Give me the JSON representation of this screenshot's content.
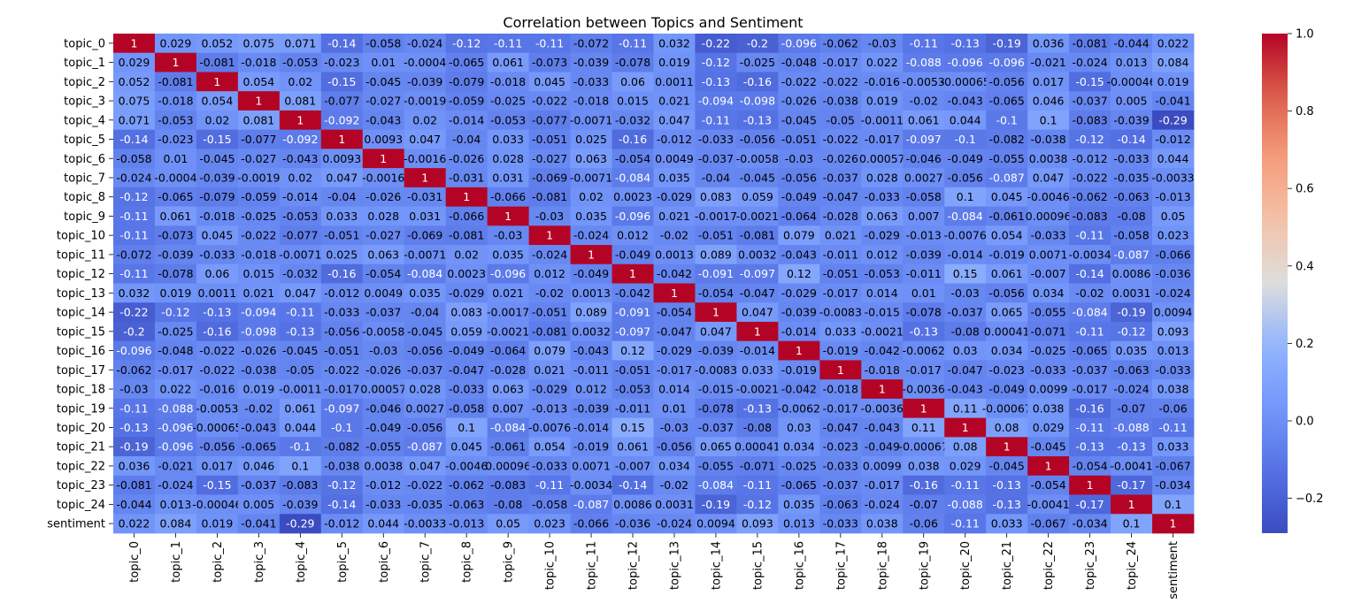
{
  "chart_data": {
    "type": "heatmap",
    "title": "Correlation between Topics and Sentiment",
    "labels": [
      "topic_0",
      "topic_1",
      "topic_2",
      "topic_3",
      "topic_4",
      "topic_5",
      "topic_6",
      "topic_7",
      "topic_8",
      "topic_9",
      "topic_10",
      "topic_11",
      "topic_12",
      "topic_13",
      "topic_14",
      "topic_15",
      "topic_16",
      "topic_17",
      "topic_18",
      "topic_19",
      "topic_20",
      "topic_21",
      "topic_22",
      "topic_23",
      "topic_24",
      "sentiment"
    ],
    "matrix": [
      [
        1,
        0.029,
        0.052,
        0.075,
        0.071,
        -0.14,
        -0.058,
        -0.024,
        -0.12,
        -0.11,
        -0.11,
        -0.072,
        -0.11,
        0.032,
        -0.22,
        -0.2,
        -0.096,
        -0.062,
        -0.03,
        -0.11,
        -0.13,
        -0.19,
        0.036,
        -0.081,
        -0.044,
        0.022
      ],
      [
        0.029,
        1,
        -0.081,
        -0.018,
        -0.053,
        -0.023,
        0.01,
        -0.0004,
        -0.065,
        0.061,
        -0.073,
        -0.039,
        -0.078,
        0.019,
        -0.12,
        -0.025,
        -0.048,
        -0.017,
        0.022,
        -0.088,
        -0.096,
        -0.096,
        -0.021,
        -0.024,
        0.013,
        0.084
      ],
      [
        0.052,
        -0.081,
        1,
        0.054,
        0.02,
        -0.15,
        -0.045,
        -0.039,
        -0.079,
        -0.018,
        0.045,
        -0.033,
        0.06,
        0.0011,
        -0.13,
        -0.16,
        -0.022,
        -0.022,
        -0.016,
        -0.0053,
        -0.00065,
        -0.056,
        0.017,
        -0.15,
        -0.00046,
        0.019
      ],
      [
        0.075,
        -0.018,
        0.054,
        1,
        0.081,
        -0.077,
        -0.027,
        -0.0019,
        -0.059,
        -0.025,
        -0.022,
        -0.018,
        0.015,
        0.021,
        -0.094,
        -0.098,
        -0.026,
        -0.038,
        0.019,
        -0.02,
        -0.043,
        -0.065,
        0.046,
        -0.037,
        0.005,
        -0.041
      ],
      [
        0.071,
        -0.053,
        0.02,
        0.081,
        1,
        -0.092,
        -0.043,
        0.02,
        -0.014,
        -0.053,
        -0.077,
        -0.0071,
        -0.032,
        0.047,
        -0.11,
        -0.13,
        -0.045,
        -0.05,
        -0.0011,
        0.061,
        0.044,
        -0.1,
        0.1,
        -0.083,
        -0.039,
        -0.29
      ],
      [
        -0.14,
        -0.023,
        -0.15,
        -0.077,
        -0.092,
        1,
        0.0093,
        0.047,
        -0.04,
        0.033,
        -0.051,
        0.025,
        -0.16,
        -0.012,
        -0.033,
        -0.056,
        -0.051,
        -0.022,
        -0.017,
        -0.097,
        -0.1,
        -0.082,
        -0.038,
        -0.12,
        -0.14,
        -0.012
      ],
      [
        -0.058,
        0.01,
        -0.045,
        -0.027,
        -0.043,
        0.0093,
        1,
        -0.0016,
        -0.026,
        0.028,
        -0.027,
        0.063,
        -0.054,
        0.0049,
        -0.037,
        -0.0058,
        -0.03,
        -0.026,
        0.00057,
        -0.046,
        -0.049,
        -0.055,
        0.0038,
        -0.012,
        -0.033,
        0.044
      ],
      [
        -0.024,
        -0.0004,
        -0.039,
        -0.0019,
        0.02,
        0.047,
        -0.0016,
        1,
        -0.031,
        0.031,
        -0.069,
        -0.0071,
        -0.084,
        0.035,
        -0.04,
        -0.045,
        -0.056,
        -0.037,
        0.028,
        0.0027,
        -0.056,
        -0.087,
        0.047,
        -0.022,
        -0.035,
        -0.0033
      ],
      [
        -0.12,
        -0.065,
        -0.079,
        -0.059,
        -0.014,
        -0.04,
        -0.026,
        -0.031,
        1,
        -0.066,
        -0.081,
        0.02,
        0.0023,
        -0.029,
        0.083,
        0.059,
        -0.049,
        -0.047,
        -0.033,
        -0.058,
        0.1,
        0.045,
        -0.0046,
        -0.062,
        -0.063,
        -0.013
      ],
      [
        -0.11,
        0.061,
        -0.018,
        -0.025,
        -0.053,
        0.033,
        0.028,
        0.031,
        -0.066,
        1,
        -0.03,
        0.035,
        -0.096,
        0.021,
        -0.0017,
        -0.0021,
        -0.064,
        -0.028,
        0.063,
        0.007,
        -0.084,
        -0.061,
        0.00096,
        -0.083,
        -0.08,
        0.05
      ],
      [
        -0.11,
        -0.073,
        0.045,
        -0.022,
        -0.077,
        -0.051,
        -0.027,
        -0.069,
        -0.081,
        -0.03,
        1,
        -0.024,
        0.012,
        -0.02,
        -0.051,
        -0.081,
        0.079,
        0.021,
        -0.029,
        -0.013,
        -0.0076,
        0.054,
        -0.033,
        -0.11,
        -0.058,
        0.023
      ],
      [
        -0.072,
        -0.039,
        -0.033,
        -0.018,
        -0.0071,
        0.025,
        0.063,
        -0.0071,
        0.02,
        0.035,
        -0.024,
        1,
        -0.049,
        0.0013,
        0.089,
        0.0032,
        -0.043,
        -0.011,
        0.012,
        -0.039,
        -0.014,
        -0.019,
        0.0071,
        -0.0034,
        -0.087,
        -0.066
      ],
      [
        -0.11,
        -0.078,
        0.06,
        0.015,
        -0.032,
        -0.16,
        -0.054,
        -0.084,
        0.0023,
        -0.096,
        0.012,
        -0.049,
        1,
        -0.042,
        -0.091,
        -0.097,
        0.12,
        -0.051,
        -0.053,
        -0.011,
        0.15,
        0.061,
        -0.007,
        -0.14,
        0.0086,
        -0.036
      ],
      [
        0.032,
        0.019,
        0.0011,
        0.021,
        0.047,
        -0.012,
        0.0049,
        0.035,
        -0.029,
        0.021,
        -0.02,
        0.0013,
        -0.042,
        1,
        -0.054,
        -0.047,
        -0.029,
        -0.017,
        0.014,
        0.01,
        -0.03,
        -0.056,
        0.034,
        -0.02,
        0.0031,
        -0.024
      ],
      [
        -0.22,
        -0.12,
        -0.13,
        -0.094,
        -0.11,
        -0.033,
        -0.037,
        -0.04,
        0.083,
        -0.0017,
        -0.051,
        0.089,
        -0.091,
        -0.054,
        1,
        0.047,
        -0.039,
        -0.0083,
        -0.015,
        -0.078,
        -0.037,
        0.065,
        -0.055,
        -0.084,
        -0.19,
        0.0094
      ],
      [
        -0.2,
        -0.025,
        -0.16,
        -0.098,
        -0.13,
        -0.056,
        -0.0058,
        -0.045,
        0.059,
        -0.0021,
        -0.081,
        0.0032,
        -0.097,
        -0.047,
        0.047,
        1,
        -0.014,
        0.033,
        -0.0021,
        -0.13,
        -0.08,
        0.00041,
        -0.071,
        -0.11,
        -0.12,
        0.093
      ],
      [
        -0.096,
        -0.048,
        -0.022,
        -0.026,
        -0.045,
        -0.051,
        -0.03,
        -0.056,
        -0.049,
        -0.064,
        0.079,
        -0.043,
        0.12,
        -0.029,
        -0.039,
        -0.014,
        1,
        -0.019,
        -0.042,
        -0.0062,
        0.03,
        0.034,
        -0.025,
        -0.065,
        0.035,
        0.013
      ],
      [
        -0.062,
        -0.017,
        -0.022,
        -0.038,
        -0.05,
        -0.022,
        -0.026,
        -0.037,
        -0.047,
        -0.028,
        0.021,
        -0.011,
        -0.051,
        -0.017,
        -0.0083,
        0.033,
        -0.019,
        1,
        -0.018,
        -0.017,
        -0.047,
        -0.023,
        -0.033,
        -0.037,
        -0.063,
        -0.033
      ],
      [
        -0.03,
        0.022,
        -0.016,
        0.019,
        -0.0011,
        -0.017,
        0.00057,
        0.028,
        -0.033,
        0.063,
        -0.029,
        0.012,
        -0.053,
        0.014,
        -0.015,
        -0.0021,
        -0.042,
        -0.018,
        1,
        -0.0036,
        -0.043,
        -0.049,
        0.0099,
        -0.017,
        -0.024,
        0.038
      ],
      [
        -0.11,
        -0.088,
        -0.0053,
        -0.02,
        0.061,
        -0.097,
        -0.046,
        0.0027,
        -0.058,
        0.007,
        -0.013,
        -0.039,
        -0.011,
        0.01,
        -0.078,
        -0.13,
        -0.0062,
        -0.017,
        -0.0036,
        1,
        0.11,
        -0.00067,
        0.038,
        -0.16,
        -0.07,
        -0.06
      ],
      [
        -0.13,
        -0.096,
        -0.00065,
        -0.043,
        0.044,
        -0.1,
        -0.049,
        -0.056,
        0.1,
        -0.084,
        -0.0076,
        -0.014,
        0.15,
        -0.03,
        -0.037,
        -0.08,
        0.03,
        -0.047,
        -0.043,
        0.11,
        1,
        0.08,
        0.029,
        -0.11,
        -0.088,
        -0.11
      ],
      [
        -0.19,
        -0.096,
        -0.056,
        -0.065,
        -0.1,
        -0.082,
        -0.055,
        -0.087,
        0.045,
        -0.061,
        0.054,
        -0.019,
        0.061,
        -0.056,
        0.065,
        0.00041,
        0.034,
        -0.023,
        -0.049,
        -0.00067,
        0.08,
        1,
        -0.045,
        -0.13,
        -0.13,
        0.033
      ],
      [
        0.036,
        -0.021,
        0.017,
        0.046,
        0.1,
        -0.038,
        0.0038,
        0.047,
        -0.0046,
        0.00096,
        -0.033,
        0.0071,
        -0.007,
        0.034,
        -0.055,
        -0.071,
        -0.025,
        -0.033,
        0.0099,
        0.038,
        0.029,
        -0.045,
        1,
        -0.054,
        -0.0041,
        -0.067
      ],
      [
        -0.081,
        -0.024,
        -0.15,
        -0.037,
        -0.083,
        -0.12,
        -0.012,
        -0.022,
        -0.062,
        -0.083,
        -0.11,
        -0.0034,
        -0.14,
        -0.02,
        -0.084,
        -0.11,
        -0.065,
        -0.037,
        -0.017,
        -0.16,
        -0.11,
        -0.13,
        -0.054,
        1,
        -0.17,
        -0.034
      ],
      [
        -0.044,
        0.013,
        -0.00046,
        0.005,
        -0.039,
        -0.14,
        -0.033,
        -0.035,
        -0.063,
        -0.08,
        -0.058,
        -0.087,
        0.0086,
        0.0031,
        -0.19,
        -0.12,
        0.035,
        -0.063,
        -0.024,
        -0.07,
        -0.088,
        -0.13,
        -0.0041,
        -0.17,
        1,
        0.1
      ],
      [
        0.022,
        0.084,
        0.019,
        -0.041,
        -0.29,
        -0.012,
        0.044,
        -0.0033,
        -0.013,
        0.05,
        0.023,
        -0.066,
        -0.036,
        -0.024,
        0.0094,
        0.093,
        0.013,
        -0.033,
        0.038,
        -0.06,
        -0.11,
        0.033,
        -0.067,
        -0.034,
        0.1,
        1
      ]
    ],
    "color_scale": {
      "name": "coolwarm",
      "vmin": -0.29,
      "vmax": 1.0,
      "ticks": [
        -0.2,
        0.0,
        0.2,
        0.4,
        0.6,
        0.8,
        1.0
      ],
      "tick_labels": [
        "−0.2",
        "0.0",
        "0.2",
        "0.4",
        "0.6",
        "0.8",
        "1.0"
      ]
    },
    "annotations": true,
    "colorbar": "right"
  }
}
